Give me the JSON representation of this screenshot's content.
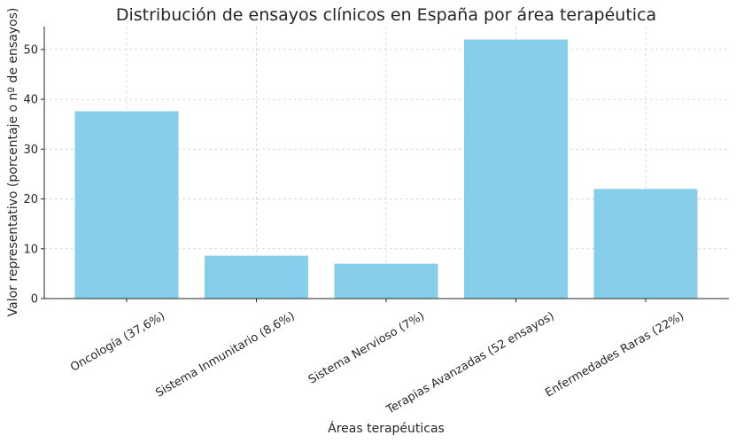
{
  "chart_data": {
    "type": "bar",
    "title": "Distribución de ensayos clínicos en España por área terapéutica",
    "xlabel": "Áreas terapéuticas",
    "ylabel": "Valor representativo (porcentaje o nº de ensayos)",
    "categories": [
      "Oncología (37,6%)",
      "Sistema Inmunitario (8,6%)",
      "Sistema Nervioso (7%)",
      "Terapias Avanzadas (52 ensayos)",
      "Enfermedades Raras (22%)"
    ],
    "values": [
      37.6,
      8.6,
      7,
      52,
      22
    ],
    "ylim": [
      0,
      54.6
    ],
    "yticks": [
      0,
      10,
      20,
      30,
      40,
      50
    ],
    "grid": true,
    "bar_color": "#87ceeb"
  }
}
